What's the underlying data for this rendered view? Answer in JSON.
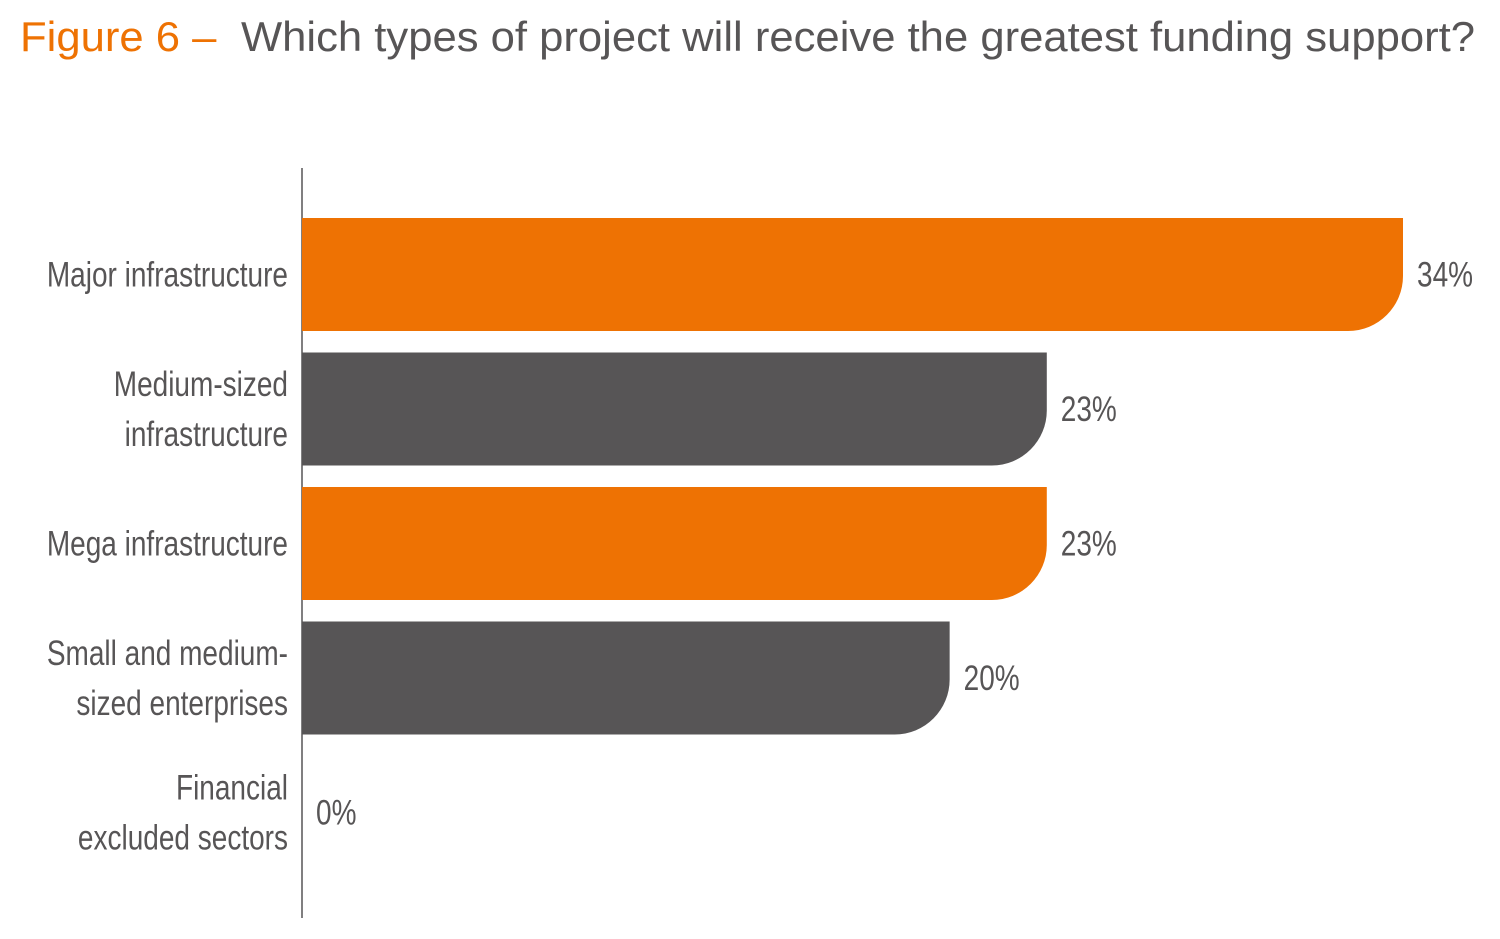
{
  "chart_data": {
    "type": "bar",
    "orientation": "horizontal",
    "title_prefix": "Figure 6 –",
    "title": "Which types of project will receive the greatest funding support?",
    "categories": [
      "Major infrastructure",
      "Medium-sized infrastructure",
      "Mega infrastructure",
      "Small and medium-sized enterprises",
      "Financial excluded sectors"
    ],
    "values": [
      34,
      23,
      23,
      20,
      0
    ],
    "value_labels": [
      "34%",
      "23%",
      "23%",
      "20%",
      "0%"
    ],
    "bar_colors": [
      "#EE7203",
      "#575556",
      "#EE7203",
      "#575556",
      "#575556"
    ],
    "xlabel": "",
    "ylabel": "",
    "xlim": [
      0,
      34
    ],
    "grid": false,
    "legend": "none"
  },
  "colors": {
    "accent": "#EE7203",
    "text": "#575556",
    "axis": "#575556"
  }
}
